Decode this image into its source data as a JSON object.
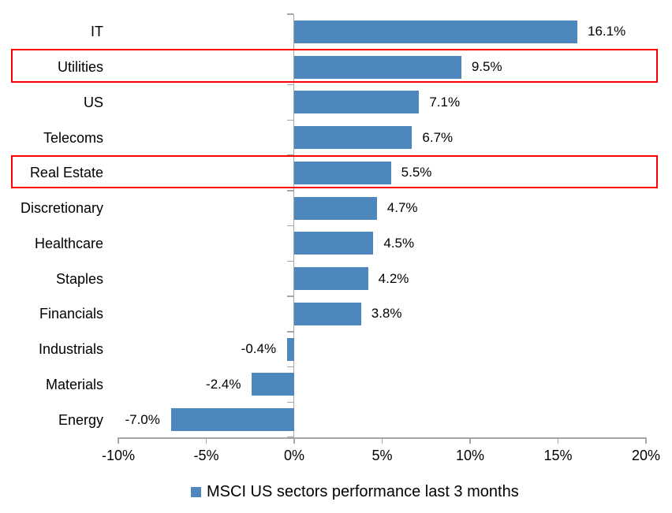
{
  "chart_data": {
    "type": "bar",
    "orientation": "horizontal",
    "title": "",
    "xlabel": "",
    "ylabel": "",
    "categories": [
      "IT",
      "Utilities",
      "US",
      "Telecoms",
      "Real Estate",
      "Discretionary",
      "Healthcare",
      "Staples",
      "Financials",
      "Industrials",
      "Materials",
      "Energy"
    ],
    "values": [
      16.1,
      9.5,
      7.1,
      6.7,
      5.5,
      4.7,
      4.5,
      4.2,
      3.8,
      -0.4,
      -2.4,
      -7.0
    ],
    "value_labels": [
      "16.1%",
      "9.5%",
      "7.1%",
      "6.7%",
      "5.5%",
      "4.7%",
      "4.5%",
      "4.2%",
      "3.8%",
      "-0.4%",
      "-2.4%",
      "-7.0%"
    ],
    "xlim": [
      -10,
      20
    ],
    "x_ticks": [
      {
        "value": -10,
        "label": "-10%"
      },
      {
        "value": -5,
        "label": "-5%"
      },
      {
        "value": 0,
        "label": "0%"
      },
      {
        "value": 5,
        "label": "5%"
      },
      {
        "value": 10,
        "label": "10%"
      },
      {
        "value": 15,
        "label": "15%"
      },
      {
        "value": 20,
        "label": "20%"
      }
    ],
    "grid": false,
    "legend_position": "bottom",
    "legend": [
      {
        "label": "MSCI US sectors performance last 3 months",
        "color": "#4e86be"
      }
    ],
    "highlighted_categories": [
      "Utilities",
      "Real Estate"
    ],
    "colors": {
      "bar": "#4e86be",
      "axis": "#a6a6a6",
      "highlight_border": "#ff0000",
      "text": "#000000"
    }
  }
}
